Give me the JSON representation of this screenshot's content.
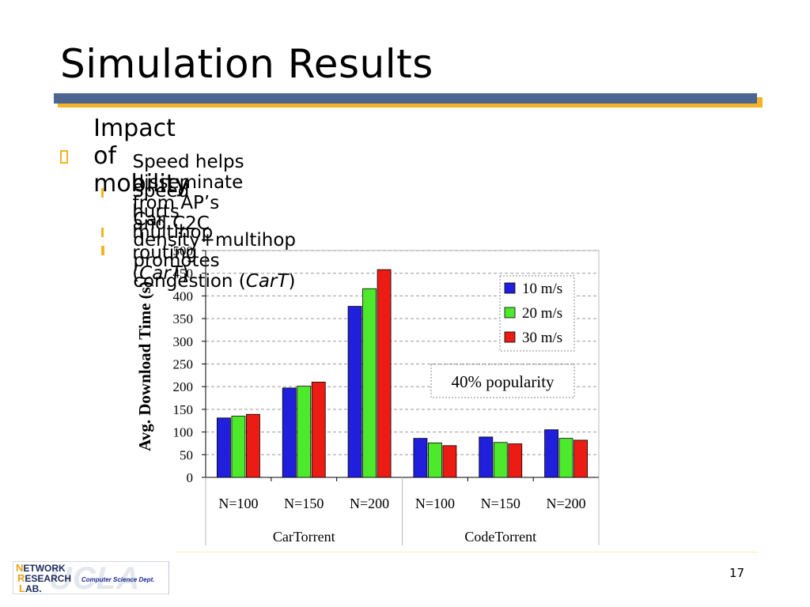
{
  "slide": {
    "title": "Simulation Results",
    "page_number": "17",
    "bullet_main": "Impact of mobility",
    "sub_bullets": [
      {
        "text": "Speed helps disseminate from AP’s and C2C",
        "italic": "",
        "tail": ""
      },
      {
        "text": "Speed hurts multihop routing (",
        "italic": "CarT",
        "tail": ")"
      },
      {
        "text": "Car density+multihop promotes congestion (",
        "italic": "CarT",
        "tail": ")"
      }
    ]
  },
  "logo": {
    "line1": "NETWORK",
    "line2": "RESEARCH",
    "line3": "LAB.",
    "dept": "Computer Science Dept.",
    "watermark": "UCLA"
  },
  "chart_data": {
    "type": "bar",
    "title": "",
    "xlabel": "",
    "ylabel": "Avg. Download Time  (s)",
    "ylim": [
      0,
      500
    ],
    "yticks": [
      0,
      50,
      100,
      150,
      200,
      250,
      300,
      350,
      400,
      450,
      500
    ],
    "grid": true,
    "legend_position": "top-right",
    "categories": [
      "N=100",
      "N=150",
      "N=200",
      "N=100",
      "N=150",
      "N=200"
    ],
    "groups": [
      {
        "label": "CarTorrent",
        "span": 3
      },
      {
        "label": "CodeTorrent",
        "span": 3
      }
    ],
    "series": [
      {
        "name": "10 m/s",
        "color": "#1f1fdc",
        "values": [
          131,
          197,
          377,
          86,
          89,
          105
        ]
      },
      {
        "name": "20 m/s",
        "color": "#4dea2c",
        "values": [
          135,
          201,
          416,
          76,
          77,
          86
        ]
      },
      {
        "name": "30 m/s",
        "color": "#ec1c14",
        "values": [
          139,
          210,
          458,
          70,
          74,
          82
        ]
      }
    ],
    "annotation": "40% popularity"
  },
  "colors": {
    "accent": "#f5b324",
    "title_bar": "#4d6591"
  }
}
